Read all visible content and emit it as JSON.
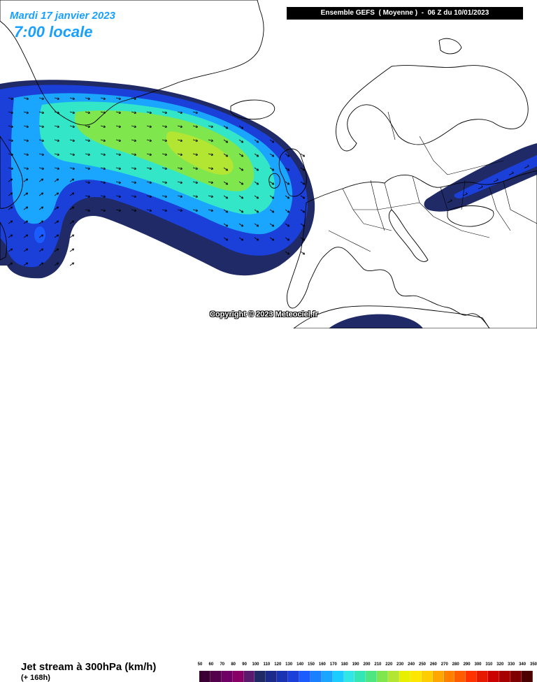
{
  "header": {
    "date_text": "Mardi 17 janvier 2023",
    "time_text": "7:00 locale",
    "model_text": "Ensemble GEFS  ( Moyenne )  -  06 Z du 10/01/2023"
  },
  "map": {
    "copyright": "Copyright © 2023 Meteociel.fr",
    "background_color": "#ffffff",
    "coastline_color": "#000000"
  },
  "footer": {
    "parameter_title": "Jet stream à 300hPa (km/h)",
    "lead_time": "(+ 168h)"
  },
  "legend": {
    "unit": "km/h",
    "ticks": [
      "50",
      "60",
      "70",
      "80",
      "90",
      "100",
      "110",
      "120",
      "130",
      "140",
      "150",
      "160",
      "170",
      "180",
      "190",
      "200",
      "210",
      "220",
      "230",
      "240",
      "250",
      "260",
      "270",
      "280",
      "290",
      "300",
      "310",
      "320",
      "330",
      "340",
      "350"
    ],
    "colors": [
      "#3a0033",
      "#55004d",
      "#700066",
      "#880066",
      "#5a1a6e",
      "#1f2a66",
      "#1c2a8c",
      "#1a33b3",
      "#1a40d9",
      "#1a5cff",
      "#1a80ff",
      "#1aa6ff",
      "#1accff",
      "#33e6e6",
      "#33e6b3",
      "#4de680",
      "#80e64d",
      "#b3e633",
      "#e6f000",
      "#ffe600",
      "#ffcc00",
      "#ffa600",
      "#ff8000",
      "#ff5c00",
      "#ff3300",
      "#e61a00",
      "#cc0000",
      "#a60000",
      "#800000",
      "#4d0000"
    ]
  }
}
